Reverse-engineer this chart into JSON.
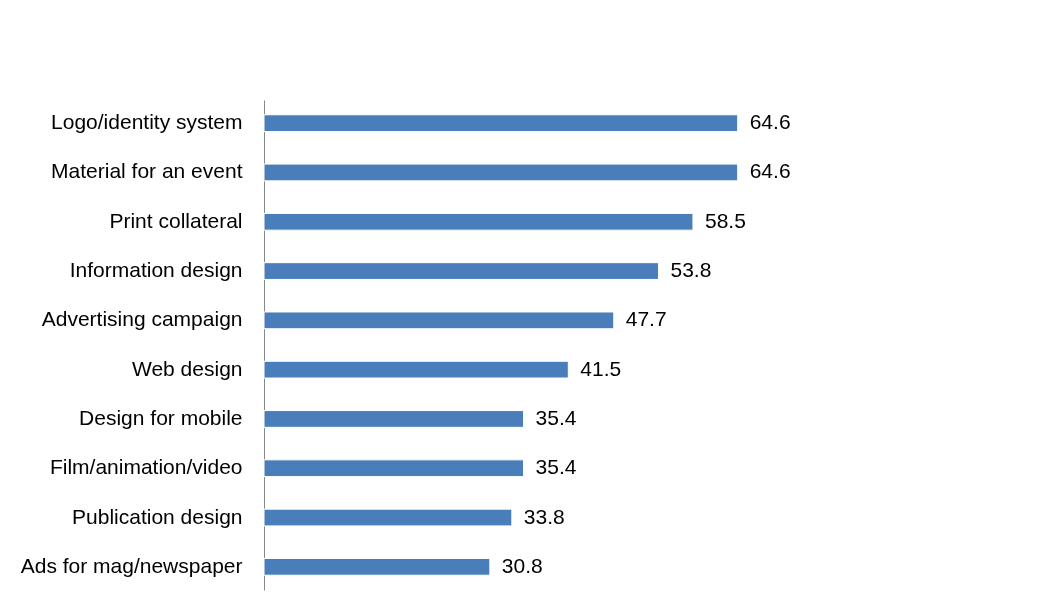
{
  "chart_data": {
    "type": "bar",
    "orientation": "horizontal",
    "data_labels": true,
    "categories": [
      "Logo/identity system",
      "Material for an event",
      "Print collateral",
      "Information design",
      "Advertising campaign",
      "Web design",
      "Design for mobile",
      "Film/animation/video",
      "Publication design",
      "Ads for mag/newspaper"
    ],
    "values": [
      64.6,
      64.6,
      58.5,
      53.8,
      47.7,
      41.5,
      35.4,
      35.4,
      33.8,
      30.8
    ],
    "color": "#4a7ebb"
  }
}
